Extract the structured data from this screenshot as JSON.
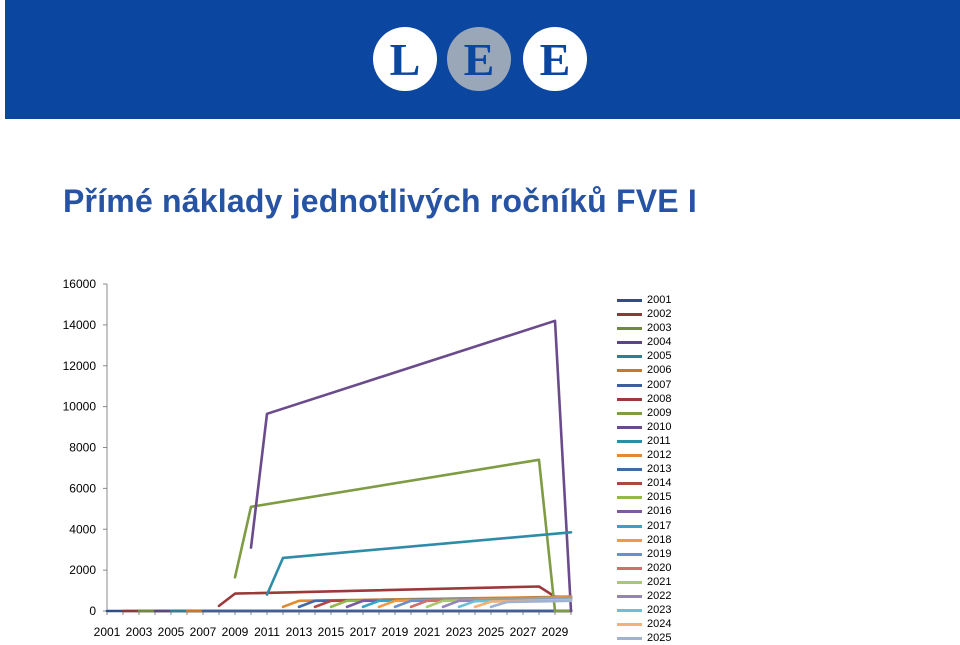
{
  "colors": {
    "banner": "#0b46a0",
    "title": "#2753a4",
    "white": "#ffffff",
    "logo_e_bg": "#9aa7b8"
  },
  "logo": {
    "letters": [
      "L",
      "E",
      "E"
    ]
  },
  "title": "Přímé náklady jednotlivých ročníků FVE I",
  "chart_data": {
    "type": "line",
    "title": "",
    "xlabel": "",
    "ylabel": "",
    "x_tick_labels": [
      "2001",
      "2003",
      "2005",
      "2007",
      "2009",
      "2011",
      "2013",
      "2015",
      "2017",
      "2019",
      "2021",
      "2023",
      "2025",
      "2027",
      "2029"
    ],
    "xlim": [
      2001,
      2030
    ],
    "ylim": [
      0,
      16000
    ],
    "y_tick_labels": [
      "0",
      "2000",
      "4000",
      "6000",
      "8000",
      "10000",
      "12000",
      "14000",
      "16000"
    ],
    "y_ticks": [
      0,
      2000,
      4000,
      6000,
      8000,
      10000,
      12000,
      14000,
      16000
    ],
    "legend_position": "right",
    "grid": false,
    "series": [
      {
        "name": "2001",
        "color": "#2d4e86",
        "points": [
          [
            2001,
            0
          ],
          [
            2030,
            0
          ]
        ]
      },
      {
        "name": "2002",
        "color": "#8b3a3a",
        "points": [
          [
            2002,
            0
          ],
          [
            2030,
            0
          ]
        ]
      },
      {
        "name": "2003",
        "color": "#6f8a3a",
        "points": [
          [
            2003,
            0
          ],
          [
            2030,
            0
          ]
        ]
      },
      {
        "name": "2004",
        "color": "#5a4680",
        "points": [
          [
            2004,
            0
          ],
          [
            2030,
            0
          ]
        ]
      },
      {
        "name": "2005",
        "color": "#2e7f96",
        "points": [
          [
            2005,
            0
          ],
          [
            2030,
            0
          ]
        ]
      },
      {
        "name": "2006",
        "color": "#c9772b",
        "points": [
          [
            2006,
            0
          ],
          [
            2030,
            0
          ]
        ]
      },
      {
        "name": "2007",
        "color": "#3c5f9e",
        "points": [
          [
            2007,
            0
          ],
          [
            2030,
            0
          ]
        ]
      },
      {
        "name": "2008",
        "color": "#9b3a3a",
        "points": [
          [
            2008,
            250
          ],
          [
            2009,
            850
          ],
          [
            2028,
            1200
          ],
          [
            2029,
            700
          ],
          [
            2030,
            700
          ]
        ]
      },
      {
        "name": "2009",
        "color": "#7f9c45",
        "points": [
          [
            2009,
            1650
          ],
          [
            2010,
            5100
          ],
          [
            2028,
            7400
          ],
          [
            2029,
            0
          ],
          [
            2030,
            0
          ]
        ]
      },
      {
        "name": "2010",
        "color": "#6a4b8c",
        "points": [
          [
            2010,
            3100
          ],
          [
            2011,
            9650
          ],
          [
            2029,
            14200
          ],
          [
            2030,
            0
          ]
        ]
      },
      {
        "name": "2011",
        "color": "#2f8ca8",
        "points": [
          [
            2011,
            800
          ],
          [
            2012,
            2600
          ],
          [
            2030,
            3850
          ]
        ]
      },
      {
        "name": "2012",
        "color": "#e08a32",
        "points": [
          [
            2012,
            200
          ],
          [
            2013,
            500
          ],
          [
            2030,
            700
          ]
        ]
      },
      {
        "name": "2013",
        "color": "#4169a8",
        "points": [
          [
            2013,
            200
          ],
          [
            2014,
            500
          ],
          [
            2030,
            650
          ]
        ]
      },
      {
        "name": "2014",
        "color": "#b04545",
        "points": [
          [
            2014,
            200
          ],
          [
            2015,
            500
          ],
          [
            2030,
            650
          ]
        ]
      },
      {
        "name": "2015",
        "color": "#92b84f",
        "points": [
          [
            2015,
            200
          ],
          [
            2016,
            500
          ],
          [
            2030,
            650
          ]
        ]
      },
      {
        "name": "2016",
        "color": "#7b5aa0",
        "points": [
          [
            2016,
            200
          ],
          [
            2017,
            500
          ],
          [
            2030,
            650
          ]
        ]
      },
      {
        "name": "2017",
        "color": "#36a3c4",
        "points": [
          [
            2017,
            200
          ],
          [
            2018,
            500
          ],
          [
            2030,
            650
          ]
        ]
      },
      {
        "name": "2018",
        "color": "#f09a45",
        "points": [
          [
            2018,
            200
          ],
          [
            2019,
            500
          ],
          [
            2030,
            650
          ]
        ]
      },
      {
        "name": "2019",
        "color": "#6b8fc9",
        "points": [
          [
            2019,
            200
          ],
          [
            2020,
            500
          ],
          [
            2030,
            620
          ]
        ]
      },
      {
        "name": "2020",
        "color": "#d16d6d",
        "points": [
          [
            2020,
            200
          ],
          [
            2021,
            500
          ],
          [
            2030,
            600
          ]
        ]
      },
      {
        "name": "2021",
        "color": "#a8c96f",
        "points": [
          [
            2021,
            200
          ],
          [
            2022,
            500
          ],
          [
            2030,
            600
          ]
        ]
      },
      {
        "name": "2022",
        "color": "#9484b8",
        "points": [
          [
            2022,
            200
          ],
          [
            2023,
            500
          ],
          [
            2030,
            580
          ]
        ]
      },
      {
        "name": "2023",
        "color": "#6cc0d6",
        "points": [
          [
            2023,
            200
          ],
          [
            2024,
            480
          ],
          [
            2030,
            560
          ]
        ]
      },
      {
        "name": "2024",
        "color": "#f5b073",
        "points": [
          [
            2024,
            200
          ],
          [
            2025,
            460
          ],
          [
            2030,
            540
          ]
        ]
      },
      {
        "name": "2025",
        "color": "#a0b1d1",
        "points": [
          [
            2025,
            200
          ],
          [
            2026,
            440
          ],
          [
            2030,
            500
          ]
        ]
      }
    ]
  }
}
